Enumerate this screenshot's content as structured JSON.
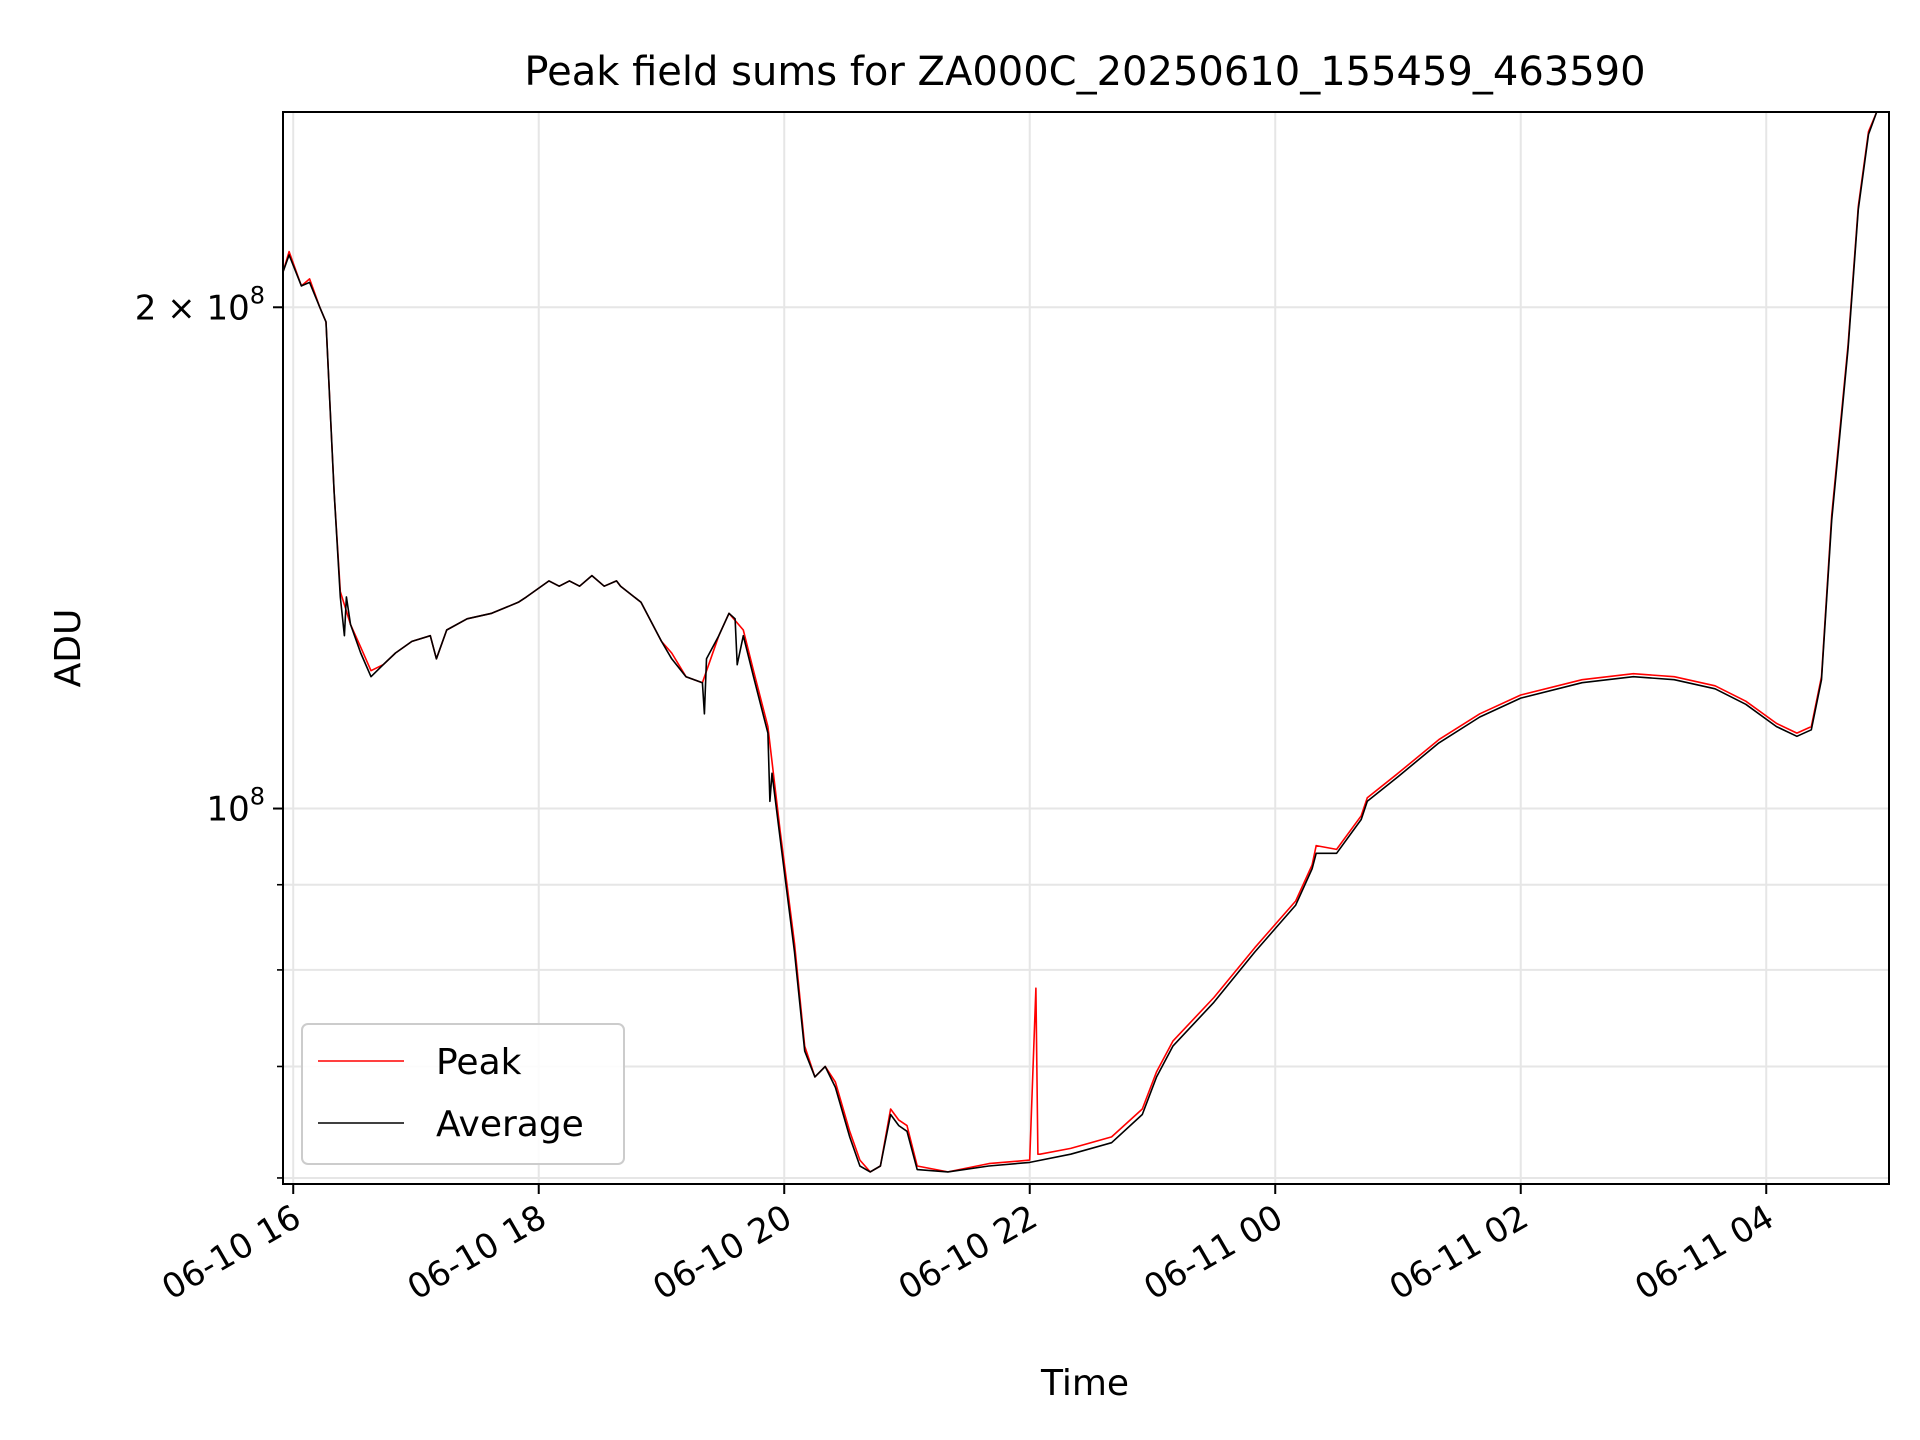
{
  "chart_data": {
    "type": "line",
    "title": "Peak field sums for ZA000C_20250610_155459_463590",
    "xlabel": "Time",
    "ylabel": "ADU",
    "y_scale": "log",
    "grid": true,
    "legend_position": "lower left",
    "xlim": [
      "2025-06-10 15:55",
      "2025-06-11 05:00"
    ],
    "ylim": [
      59500000,
      262000000
    ],
    "x_ticks": [
      "06-10 16",
      "06-10 18",
      "06-10 20",
      "06-10 22",
      "06-11 00",
      "06-11 02",
      "06-11 04"
    ],
    "y_ticks": [
      {
        "value": 200000000,
        "base": "2 × 10",
        "exp": "8"
      },
      {
        "value": 100000000,
        "base": "10",
        "exp": "8"
      }
    ],
    "y_minor_ticks": [
      60000000,
      70000000,
      80000000,
      90000000
    ],
    "series": [
      {
        "name": "Peak",
        "color": "#ff0000",
        "x": [
          "2025-06-10 15:55",
          "2025-06-10 15:58",
          "2025-06-10 16:04",
          "2025-06-10 16:08",
          "2025-06-10 16:13",
          "2025-06-10 16:16",
          "2025-06-10 16:20",
          "2025-06-10 16:23",
          "2025-06-10 16:28",
          "2025-06-10 16:33",
          "2025-06-10 16:38",
          "2025-06-10 16:44",
          "2025-06-10 16:50",
          "2025-06-10 16:58",
          "2025-06-10 17:07",
          "2025-06-10 17:10",
          "2025-06-10 17:15",
          "2025-06-10 17:25",
          "2025-06-10 17:37",
          "2025-06-10 17:50",
          "2025-06-10 17:54",
          "2025-06-10 18:05",
          "2025-06-10 18:10",
          "2025-06-10 18:15",
          "2025-06-10 18:20",
          "2025-06-10 18:26",
          "2025-06-10 18:32",
          "2025-06-10 18:38",
          "2025-06-10 18:40",
          "2025-06-10 18:50",
          "2025-06-10 19:00",
          "2025-06-10 19:05",
          "2025-06-10 19:12",
          "2025-06-10 19:20",
          "2025-06-10 19:28",
          "2025-06-10 19:33",
          "2025-06-10 19:40",
          "2025-06-10 19:45",
          "2025-06-10 19:52",
          "2025-06-10 19:58",
          "2025-06-10 20:05",
          "2025-06-10 20:10",
          "2025-06-10 20:15",
          "2025-06-10 20:20",
          "2025-06-10 20:25",
          "2025-06-10 20:32",
          "2025-06-10 20:37",
          "2025-06-10 20:42",
          "2025-06-10 20:47",
          "2025-06-10 20:52",
          "2025-06-10 20:56",
          "2025-06-10 21:00",
          "2025-06-10 21:05",
          "2025-06-10 21:20",
          "2025-06-10 21:40",
          "2025-06-10 22:00",
          "2025-06-10 22:03",
          "2025-06-10 22:04",
          "2025-06-10 22:05",
          "2025-06-10 22:20",
          "2025-06-10 22:40",
          "2025-06-10 22:55",
          "2025-06-10 23:02",
          "2025-06-10 23:10",
          "2025-06-10 23:30",
          "2025-06-10 23:50",
          "2025-06-11 00:10",
          "2025-06-11 00:18",
          "2025-06-11 00:20",
          "2025-06-11 00:30",
          "2025-06-11 00:42",
          "2025-06-11 00:45",
          "2025-06-11 01:00",
          "2025-06-11 01:20",
          "2025-06-11 01:40",
          "2025-06-11 02:00",
          "2025-06-11 02:30",
          "2025-06-11 02:55",
          "2025-06-11 03:15",
          "2025-06-11 03:35",
          "2025-06-11 03:50",
          "2025-06-11 04:05",
          "2025-06-11 04:15",
          "2025-06-11 04:22",
          "2025-06-11 04:27",
          "2025-06-11 04:32",
          "2025-06-11 04:40",
          "2025-06-11 04:45",
          "2025-06-11 04:50",
          "2025-06-11 04:54",
          "2025-06-11 04:58",
          "2025-06-11 05:00"
        ],
        "y": [
          210000000,
          216000000,
          206000000,
          208000000,
          200000000,
          196000000,
          155000000,
          135000000,
          129000000,
          125000000,
          121000000,
          122000000,
          124000000,
          126000000,
          127000000,
          123000000,
          128000000,
          130000000,
          131000000,
          133000000,
          134000000,
          137000000,
          136000000,
          137000000,
          136000000,
          138000000,
          136000000,
          137000000,
          136000000,
          133000000,
          126000000,
          124000000,
          120000000,
          119000000,
          127000000,
          131000000,
          128000000,
          121000000,
          112000000,
          97000000,
          83000000,
          72000000,
          69000000,
          70000000,
          68500000,
          64000000,
          61500000,
          60500000,
          61000000,
          66000000,
          65000000,
          64500000,
          61000000,
          60500000,
          61200000,
          61500000,
          78000000,
          62000000,
          62000000,
          62500000,
          63500000,
          66000000,
          69500000,
          72500000,
          77000000,
          82500000,
          88000000,
          92500000,
          95000000,
          94500000,
          99000000,
          101500000,
          105000000,
          110000000,
          114000000,
          117000000,
          119500000,
          120500000,
          120000000,
          118500000,
          116000000,
          112500000,
          111000000,
          112000000,
          120000000,
          150000000,
          190000000,
          230000000,
          255000000,
          262000000,
          262000000,
          262000000
        ]
      },
      {
        "name": "Average",
        "color": "#000000",
        "x": [
          "2025-06-10 15:55",
          "2025-06-10 15:58",
          "2025-06-10 16:04",
          "2025-06-10 16:08",
          "2025-06-10 16:13",
          "2025-06-10 16:16",
          "2025-06-10 16:20",
          "2025-06-10 16:23",
          "2025-06-10 16:25",
          "2025-06-10 16:26",
          "2025-06-10 16:28",
          "2025-06-10 16:33",
          "2025-06-10 16:38",
          "2025-06-10 16:44",
          "2025-06-10 16:50",
          "2025-06-10 16:58",
          "2025-06-10 17:07",
          "2025-06-10 17:10",
          "2025-06-10 17:15",
          "2025-06-10 17:25",
          "2025-06-10 17:37",
          "2025-06-10 17:50",
          "2025-06-10 17:54",
          "2025-06-10 18:05",
          "2025-06-10 18:10",
          "2025-06-10 18:15",
          "2025-06-10 18:20",
          "2025-06-10 18:26",
          "2025-06-10 18:32",
          "2025-06-10 18:38",
          "2025-06-10 18:40",
          "2025-06-10 18:50",
          "2025-06-10 19:00",
          "2025-06-10 19:05",
          "2025-06-10 19:12",
          "2025-06-10 19:20",
          "2025-06-10 19:21",
          "2025-06-10 19:22",
          "2025-06-10 19:28",
          "2025-06-10 19:33",
          "2025-06-10 19:36",
          "2025-06-10 19:37",
          "2025-06-10 19:40",
          "2025-06-10 19:45",
          "2025-06-10 19:52",
          "2025-06-10 19:53",
          "2025-06-10 19:54",
          "2025-06-10 19:58",
          "2025-06-10 20:05",
          "2025-06-10 20:10",
          "2025-06-10 20:15",
          "2025-06-10 20:20",
          "2025-06-10 20:25",
          "2025-06-10 20:32",
          "2025-06-10 20:37",
          "2025-06-10 20:42",
          "2025-06-10 20:47",
          "2025-06-10 20:52",
          "2025-06-10 20:56",
          "2025-06-10 21:00",
          "2025-06-10 21:05",
          "2025-06-10 21:20",
          "2025-06-10 21:40",
          "2025-06-10 22:00",
          "2025-06-10 22:20",
          "2025-06-10 22:40",
          "2025-06-10 22:55",
          "2025-06-10 23:02",
          "2025-06-10 23:10",
          "2025-06-10 23:30",
          "2025-06-10 23:50",
          "2025-06-11 00:10",
          "2025-06-11 00:18",
          "2025-06-11 00:20",
          "2025-06-11 00:30",
          "2025-06-11 00:42",
          "2025-06-11 00:45",
          "2025-06-11 01:00",
          "2025-06-11 01:20",
          "2025-06-11 01:40",
          "2025-06-11 02:00",
          "2025-06-11 02:30",
          "2025-06-11 02:55",
          "2025-06-11 03:15",
          "2025-06-11 03:35",
          "2025-06-11 03:50",
          "2025-06-11 04:05",
          "2025-06-11 04:15",
          "2025-06-11 04:22",
          "2025-06-11 04:27",
          "2025-06-11 04:32",
          "2025-06-11 04:40",
          "2025-06-11 04:45",
          "2025-06-11 04:50",
          "2025-06-11 04:54",
          "2025-06-11 04:58",
          "2025-06-11 05:00"
        ],
        "y": [
          210000000,
          215000000,
          206000000,
          207000000,
          200000000,
          196000000,
          155000000,
          134000000,
          127000000,
          134000000,
          129000000,
          124000000,
          120000000,
          122000000,
          124000000,
          126000000,
          127000000,
          123000000,
          128000000,
          130000000,
          131000000,
          133000000,
          134000000,
          137000000,
          136000000,
          137000000,
          136000000,
          138000000,
          136000000,
          137000000,
          136000000,
          133000000,
          126000000,
          123000000,
          120000000,
          119000000,
          114000000,
          123000000,
          127000000,
          131000000,
          130000000,
          122000000,
          127000000,
          120000000,
          111000000,
          101000000,
          105000000,
          96000000,
          82000000,
          71500000,
          69000000,
          70000000,
          68000000,
          63500000,
          61000000,
          60500000,
          61000000,
          65500000,
          64500000,
          64000000,
          60700000,
          60500000,
          61000000,
          61300000,
          62000000,
          63000000,
          65500000,
          69000000,
          72000000,
          76500000,
          82000000,
          87500000,
          92000000,
          94000000,
          94000000,
          98500000,
          101000000,
          104500000,
          109500000,
          113500000,
          116500000,
          119000000,
          120000000,
          119500000,
          118000000,
          115500000,
          112000000,
          110500000,
          111500000,
          119500000,
          149000000,
          189000000,
          229000000,
          254000000,
          262000000,
          262000000,
          262000000
        ]
      }
    ]
  }
}
